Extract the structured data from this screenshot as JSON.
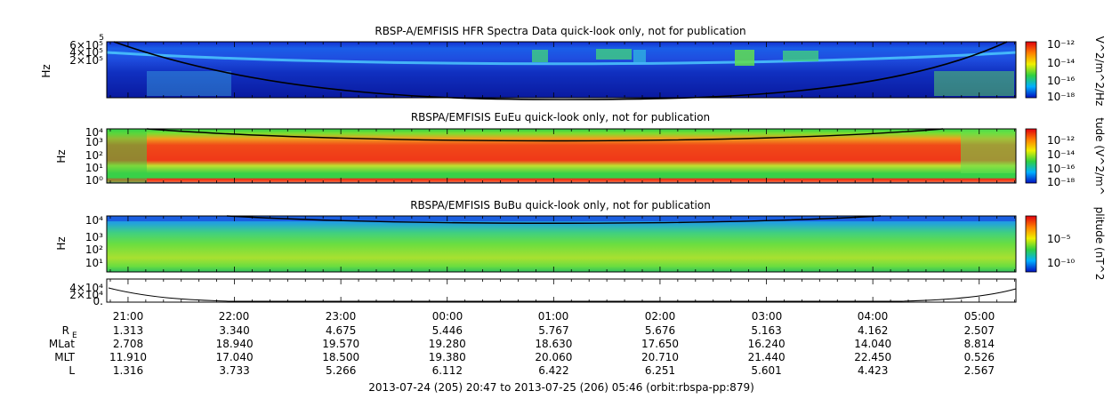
{
  "chart_data": {
    "type": "heatmap",
    "panels": [
      {
        "title": "RBSP-A/EMFISIS  HFR Spectra Data quick-look only, not for publication",
        "ylabel": "Hz",
        "y_ticks": [
          "6×10⁵",
          "4×10⁵",
          "2×10⁵"
        ],
        "y_top_label": "5",
        "colorbar_label": "V^2/m^2/Hz",
        "colorbar_ticks": [
          "10⁻¹²",
          "10⁻¹⁴",
          "10⁻¹⁶",
          "10⁻¹⁸"
        ]
      },
      {
        "title": "RBSPA/EMFISIS  EuEu quick-look only, not for publication",
        "ylabel": "Hz",
        "y_ticks": [
          "10⁴",
          "10³",
          "10²",
          "10¹",
          "10⁰"
        ],
        "colorbar_label": "tude (V^2/m^",
        "colorbar_ticks": [
          "10⁻¹²",
          "10⁻¹⁴",
          "10⁻¹⁶",
          "10⁻¹⁸"
        ]
      },
      {
        "title": "RBSPA/EMFISIS  BuBu quick-look only, not for publication",
        "ylabel": "Hz",
        "y_ticks": [
          "10⁴",
          "10³",
          "10²",
          "10¹"
        ],
        "colorbar_label": "plitude (nT^2",
        "colorbar_ticks": [
          "10⁻⁵",
          "10⁻¹⁰"
        ]
      },
      {
        "title": "",
        "ylabel": "",
        "y_ticks": [
          "4×10⁴",
          "2×10⁴",
          "0."
        ]
      }
    ],
    "x_ticks": [
      "21:00",
      "22:00",
      "23:00",
      "00:00",
      "01:00",
      "02:00",
      "03:00",
      "04:00",
      "05:00"
    ],
    "ephemeris": {
      "row_labels": [
        "R",
        "MLat",
        "MLT",
        "L"
      ],
      "R_subscript": "E",
      "rows": [
        [
          "1.313",
          "3.340",
          "4.675",
          "5.446",
          "5.767",
          "5.676",
          "5.163",
          "4.162",
          "2.507"
        ],
        [
          "2.708",
          "18.940",
          "19.570",
          "19.280",
          "18.630",
          "17.650",
          "16.240",
          "14.040",
          "8.814"
        ],
        [
          "11.910",
          "17.040",
          "18.500",
          "19.380",
          "20.060",
          "20.710",
          "21.440",
          "22.450",
          "0.526"
        ],
        [
          "1.316",
          "3.733",
          "5.266",
          "6.112",
          "6.422",
          "6.251",
          "5.601",
          "4.423",
          "2.567"
        ]
      ]
    },
    "footer": "2013-07-24 (205) 20:47 to 2013-07-25 (206) 05:46 (orbit:rbspa-pp:879)"
  }
}
